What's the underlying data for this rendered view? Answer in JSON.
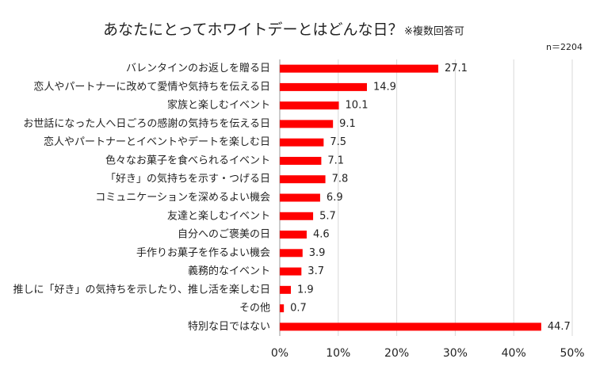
{
  "chart_data": {
    "type": "bar",
    "orientation": "horizontal",
    "title": "あなたにとってホワイトデーとはどんな日？",
    "subtitle": "※複数回答可",
    "annotation": "n＝2204",
    "categories": [
      "バレンタインのお返しを贈る日",
      "恋人やパートナーに改めて愛情や気持ちを伝える日",
      "家族と楽しむイベント",
      "お世話になった人へ日ごろの感謝の気持ちを伝える日",
      "恋人やパートナーとイベントやデートを楽しむ日",
      "色々なお菓子を食べられるイベント",
      "「好き」の気持ちを示す・つげる日",
      "コミュニケーションを深めるよい機会",
      "友達と楽しむイベント",
      "自分へのご褒美の日",
      "手作りお菓子を作るよい機会",
      "義務的なイベント",
      "推しに「好き」の気持ちを示したり、推し活を楽しむ日",
      "その他",
      "特別な日ではない"
    ],
    "values": [
      27.1,
      14.9,
      10.1,
      9.1,
      7.5,
      7.1,
      7.8,
      6.9,
      5.7,
      4.6,
      3.9,
      3.7,
      1.9,
      0.7,
      44.7
    ],
    "color": "#ff0000",
    "xlim": [
      0,
      50
    ],
    "xticks": [
      {
        "value": 0,
        "label": "0%"
      },
      {
        "value": 10,
        "label": "10%"
      },
      {
        "value": 20,
        "label": "20%"
      },
      {
        "value": 30,
        "label": "30%"
      },
      {
        "value": 40,
        "label": "40%"
      },
      {
        "value": 50,
        "label": "50%"
      }
    ],
    "grid": true
  }
}
